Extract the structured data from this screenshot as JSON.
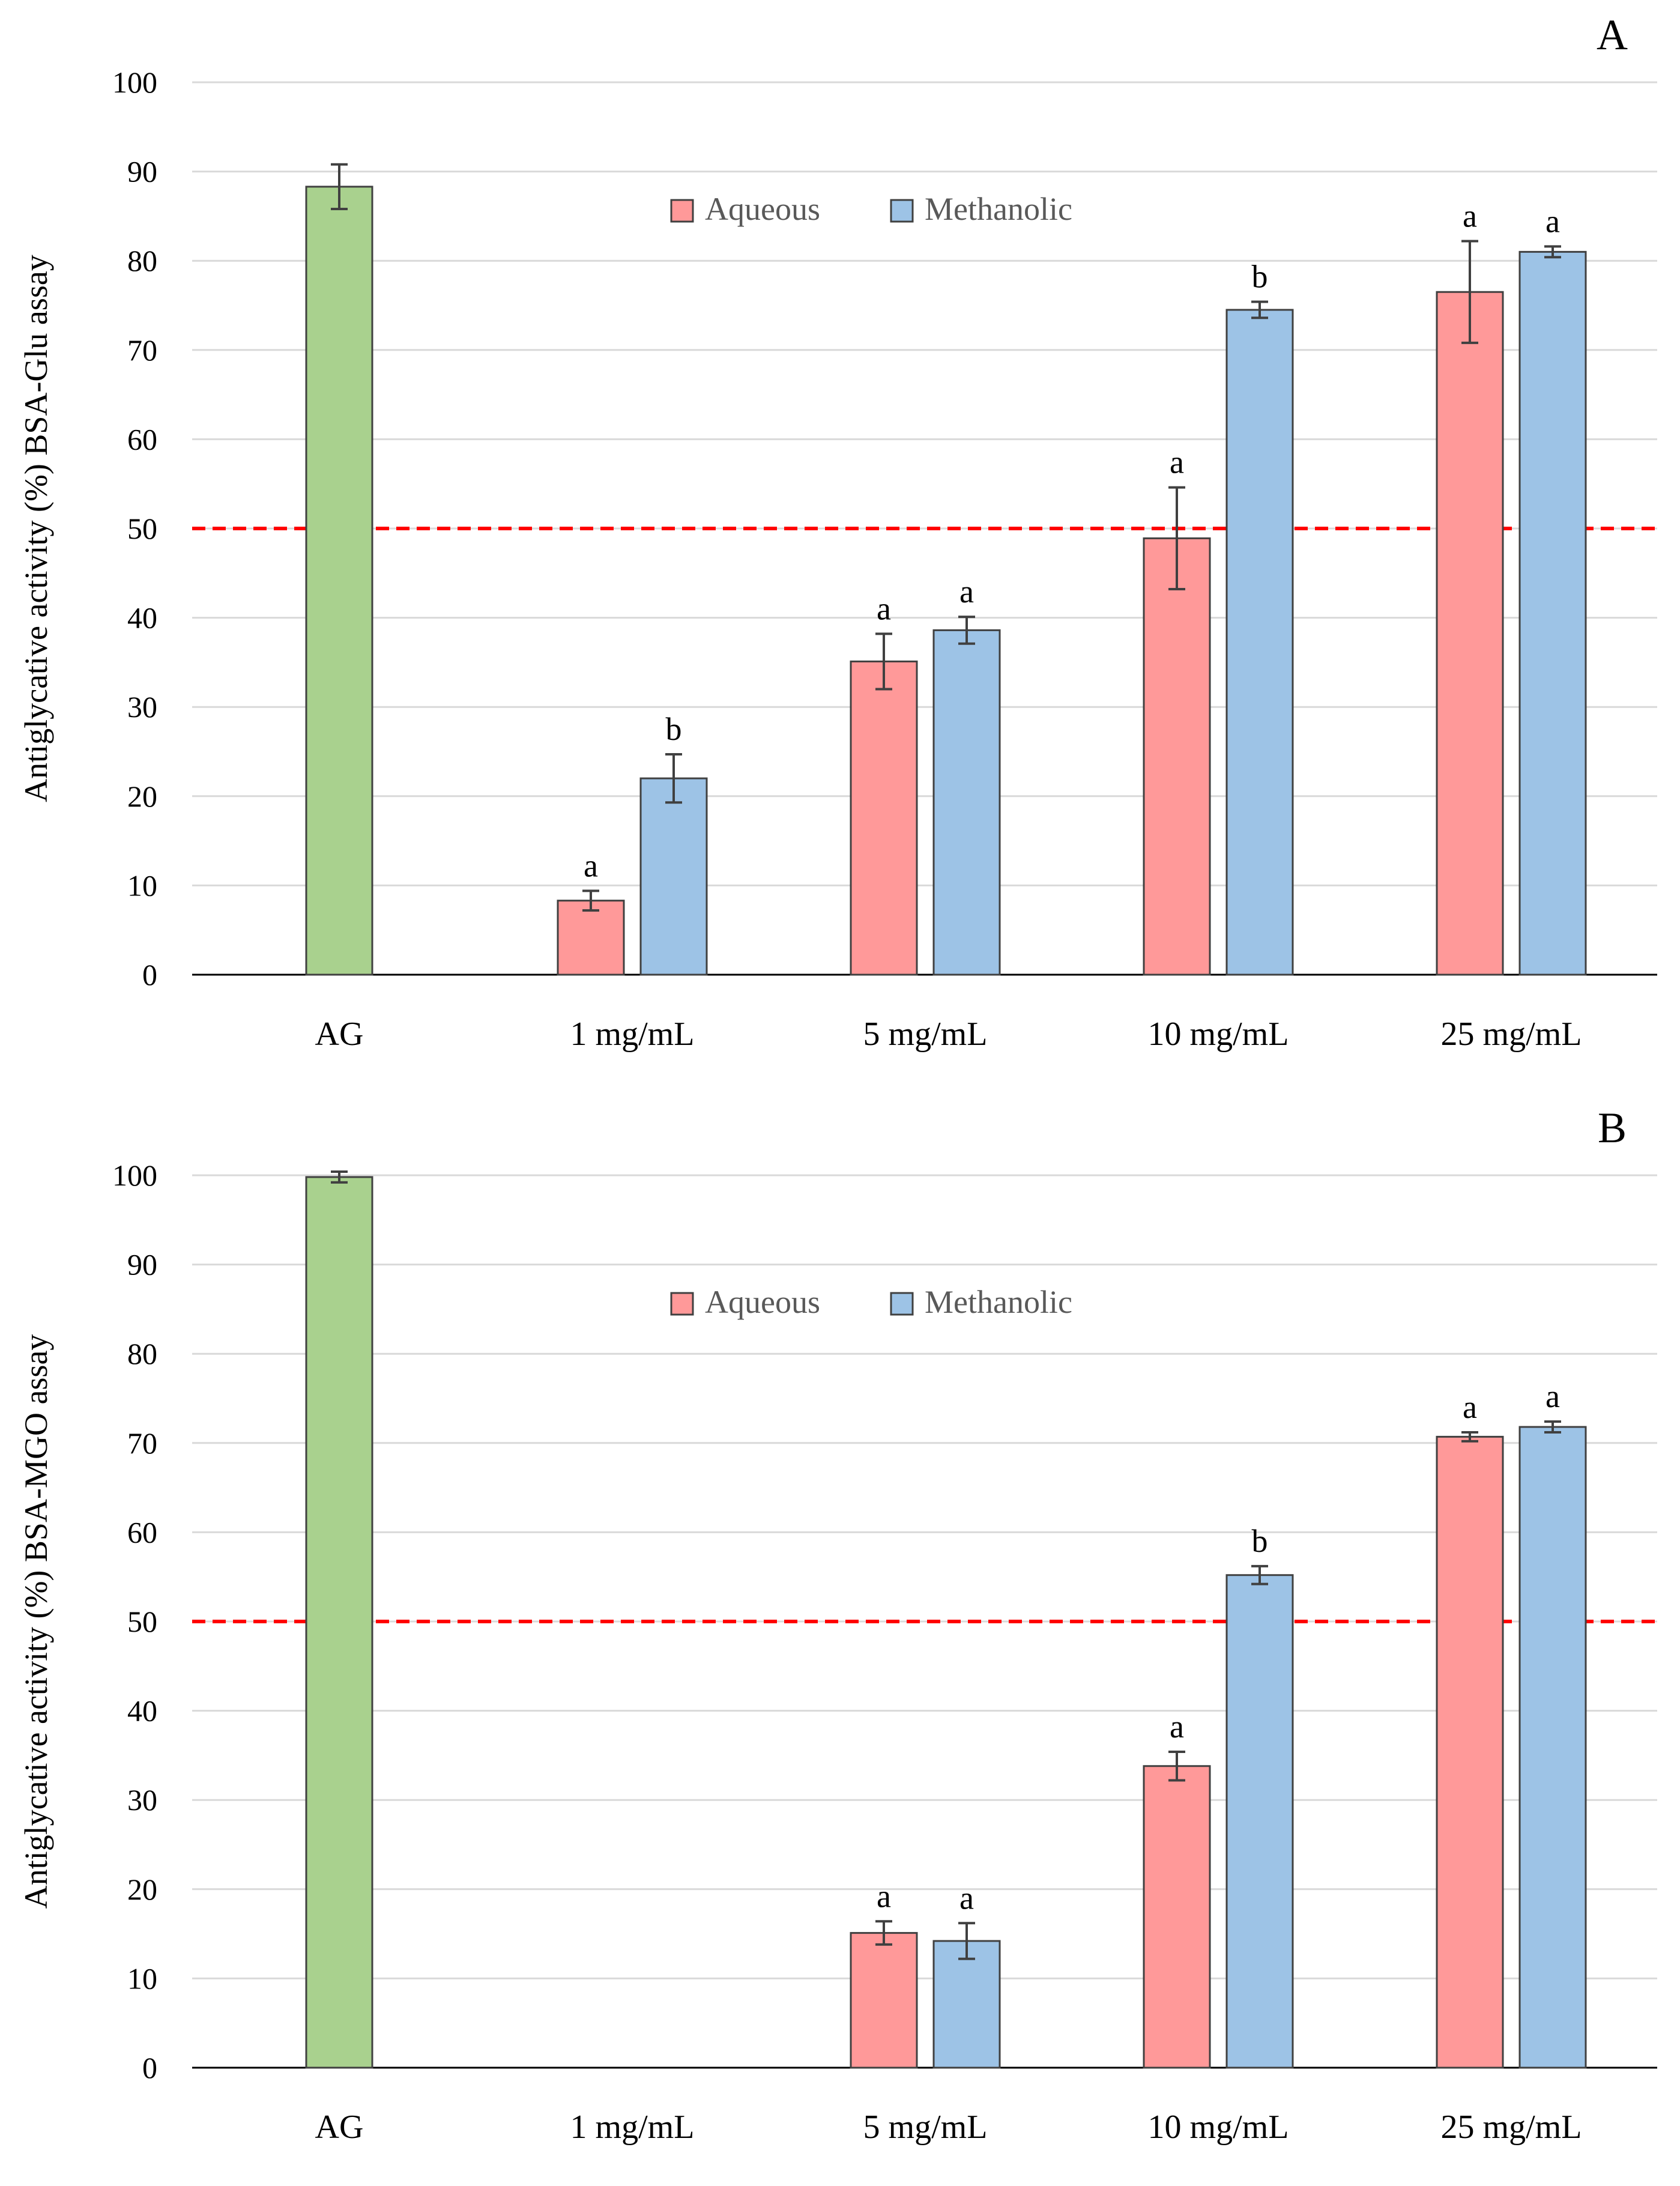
{
  "colors": {
    "standard": "#a9d18e",
    "aqueous": "#ff9999",
    "methanolic": "#9dc3e6",
    "threshold": "#ff0000",
    "grid": "#d9d9d9",
    "text": "#000000",
    "legend_text": "#595959"
  },
  "chart_data": [
    {
      "type": "bar",
      "panel_label": "A",
      "ylabel": "Antiglycative activity (%) BSA-Glu assay",
      "ylim": [
        0,
        100
      ],
      "yticks": [
        0,
        10,
        20,
        30,
        40,
        50,
        60,
        70,
        80,
        90,
        100
      ],
      "grid": true,
      "legend_position": "top-center",
      "threshold": 50,
      "categories": [
        "AG",
        "1 mg/mL",
        "5 mg/mL",
        "10 mg/mL",
        "25 mg/mL"
      ],
      "standard": {
        "category": "AG",
        "value": 88.3,
        "error": 2.5
      },
      "series": [
        {
          "name": "Aqueous",
          "key": "aqueous",
          "values": [
            null,
            8.3,
            35.1,
            48.9,
            76.5
          ],
          "errors": [
            null,
            1.1,
            3.1,
            5.7,
            5.7
          ],
          "labels": [
            null,
            "a",
            "a",
            "a",
            "a"
          ]
        },
        {
          "name": "Methanolic",
          "key": "methanolic",
          "values": [
            null,
            22.0,
            38.6,
            74.5,
            81.0
          ],
          "errors": [
            null,
            2.7,
            1.5,
            0.9,
            0.6
          ],
          "labels": [
            null,
            "b",
            "a",
            "b",
            "a"
          ]
        }
      ]
    },
    {
      "type": "bar",
      "panel_label": "B",
      "ylabel": "Antiglycative activity (%) BSA-MGO assay",
      "ylim": [
        0,
        100
      ],
      "yticks": [
        0,
        10,
        20,
        30,
        40,
        50,
        60,
        70,
        80,
        90,
        100
      ],
      "grid": true,
      "legend_position": "top-center",
      "threshold": 50,
      "categories": [
        "AG",
        "1 mg/mL",
        "5 mg/mL",
        "10 mg/mL",
        "25 mg/mL"
      ],
      "standard": {
        "category": "AG",
        "value": 99.8,
        "error": 0.6
      },
      "series": [
        {
          "name": "Aqueous",
          "key": "aqueous",
          "values": [
            null,
            0,
            15.1,
            33.8,
            70.7
          ],
          "errors": [
            null,
            0,
            1.3,
            1.6,
            0.5
          ],
          "labels": [
            null,
            null,
            "a",
            "a",
            "a"
          ]
        },
        {
          "name": "Methanolic",
          "key": "methanolic",
          "values": [
            null,
            0,
            14.2,
            55.2,
            71.8
          ],
          "errors": [
            null,
            0,
            2.0,
            1.0,
            0.6
          ],
          "labels": [
            null,
            null,
            "a",
            "b",
            "a"
          ]
        }
      ]
    }
  ]
}
